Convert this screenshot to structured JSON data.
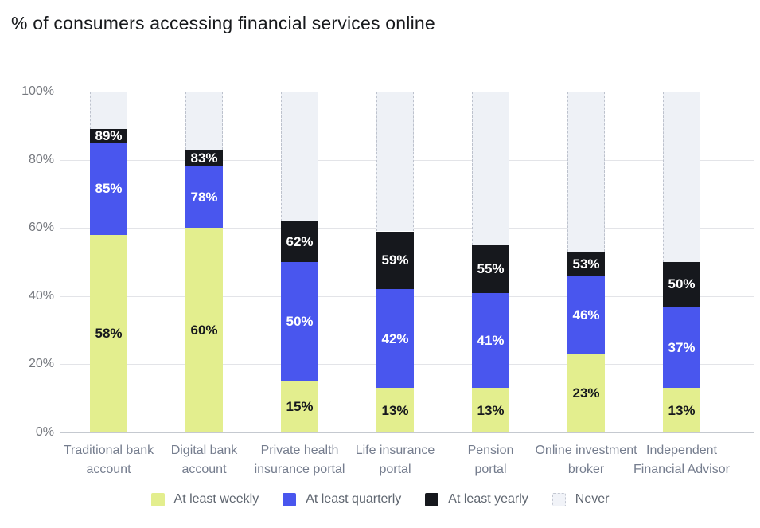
{
  "chart_data": {
    "type": "bar",
    "stacked": true,
    "title": "% of consumers accessing financial services online",
    "categories": [
      "Traditional bank account",
      "Digital bank account",
      "Private health insurance portal",
      "Life insurance portal",
      "Pension portal",
      "Online investment broker",
      "Independent Financial Advisor"
    ],
    "category_lines": [
      [
        "Traditional bank",
        "account"
      ],
      [
        "Digital bank",
        "account"
      ],
      [
        "Private health",
        "insurance portal"
      ],
      [
        "Life insurance",
        "portal"
      ],
      [
        "Pension",
        "portal"
      ],
      [
        "Online investment",
        "broker"
      ],
      [
        "Independent",
        "Financial Advisor"
      ]
    ],
    "values_are_cumulative_percent": true,
    "series": [
      {
        "name": "At least weekly",
        "color": "#e3ee8e",
        "label_color": "#16181d",
        "values": [
          58,
          60,
          15,
          13,
          13,
          23,
          13
        ]
      },
      {
        "name": "At least quarterly",
        "color": "#4956ee",
        "label_color": "#ffffff",
        "values": [
          85,
          78,
          50,
          42,
          41,
          46,
          37
        ]
      },
      {
        "name": "At least yearly",
        "color": "#16181d",
        "label_color": "#ffffff",
        "values": [
          89,
          83,
          62,
          59,
          55,
          53,
          50
        ]
      },
      {
        "name": "Never",
        "color": "#eef1f6",
        "border_color": "#bdc2cd",
        "border_style": "dashed",
        "values": [
          100,
          100,
          100,
          100,
          100,
          100,
          100
        ],
        "show_value_labels": false
      }
    ],
    "y_axis": {
      "min": 0,
      "max": 100,
      "tick_step": 20,
      "tick_labels": [
        "0%",
        "20%",
        "40%",
        "60%",
        "80%",
        "100%"
      ]
    },
    "legend": {
      "position": "bottom",
      "items": [
        "At least weekly",
        "At least quarterly",
        "At least yearly",
        "Never"
      ]
    },
    "grid": "horizontal"
  },
  "colors": {
    "background": "#ffffff",
    "title": "#17191c",
    "grid_line": "#e3e4e8",
    "axis_line": "#c5c9d0",
    "tick_label": "#75787e",
    "category_label": "#757d8e",
    "legend_label": "#5f6670"
  }
}
